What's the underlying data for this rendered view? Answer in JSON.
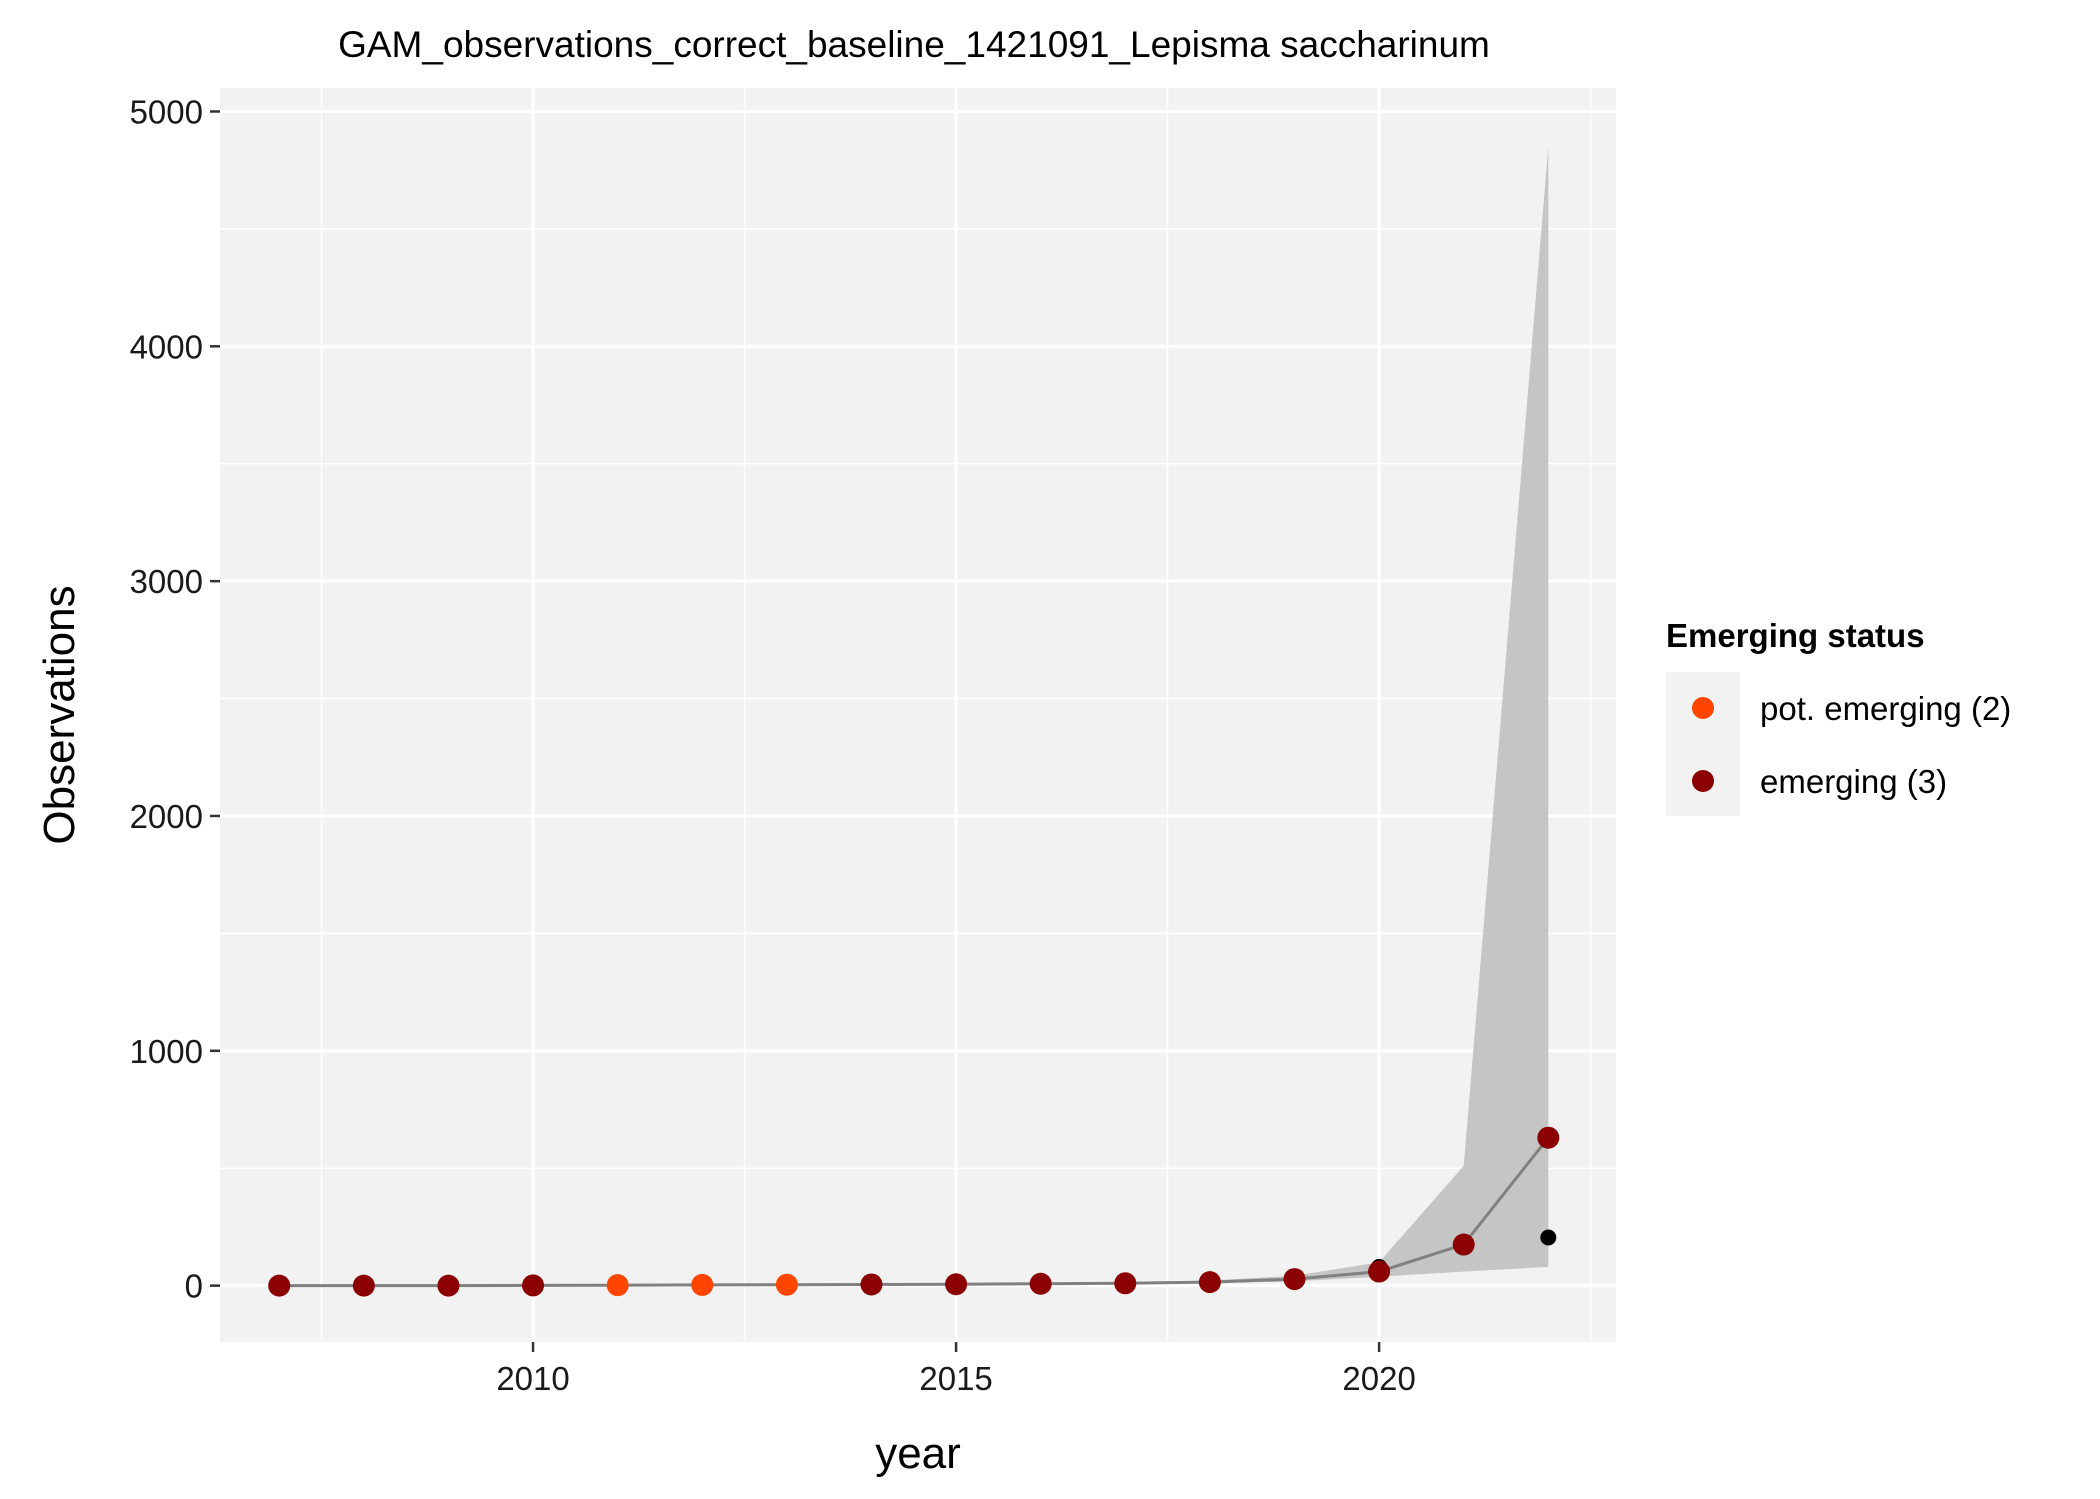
{
  "chart_data": {
    "type": "scatter",
    "title": "GAM_observations_correct_baseline_1421091_Lepisma saccharinum",
    "xlabel": "year",
    "ylabel": "Observations",
    "xlim": [
      2006.3,
      2022.8
    ],
    "ylim": [
      -240,
      5100
    ],
    "x_ticks": [
      2010,
      2015,
      2020
    ],
    "x_tick_labels": [
      "2010",
      "2015",
      "2020"
    ],
    "y_ticks": [
      0,
      1000,
      2000,
      3000,
      4000,
      5000
    ],
    "y_tick_labels": [
      "0",
      "1000",
      "2000",
      "3000",
      "4000",
      "5000"
    ],
    "grid": true,
    "panel_background": "#f2f2f2",
    "grid_color": "#ffffff",
    "gam_fit": {
      "color": "#808080",
      "ribbon_color": "#bdbdbd",
      "x": [
        2007,
        2008,
        2009,
        2010,
        2011,
        2012,
        2013,
        2014,
        2015,
        2016,
        2017,
        2018,
        2019,
        2020,
        2021,
        2022
      ],
      "fit": [
        0,
        0,
        0,
        1,
        2,
        3,
        4,
        5,
        6,
        8,
        10,
        15,
        28,
        60,
        175,
        630
      ],
      "lower": [
        0,
        0,
        0,
        0,
        0,
        0,
        1,
        2,
        3,
        4,
        6,
        10,
        18,
        38,
        60,
        80
      ],
      "upper": [
        2,
        2,
        2,
        3,
        4,
        5,
        7,
        8,
        10,
        12,
        15,
        22,
        42,
        100,
        510,
        4850
      ]
    },
    "observed": {
      "color": "#000000",
      "x": [
        2007,
        2008,
        2009,
        2010,
        2011,
        2012,
        2013,
        2014,
        2015,
        2016,
        2017,
        2018,
        2019,
        2020,
        2021,
        2022
      ],
      "y": [
        0,
        0,
        0,
        0,
        1,
        1,
        3,
        5,
        6,
        7,
        9,
        15,
        30,
        80,
        180,
        205
      ]
    },
    "series": [
      {
        "name": "pot. emerging (2)",
        "color": "#ff4500",
        "x": [
          2011,
          2012,
          2013
        ],
        "y": [
          2,
          3,
          4
        ]
      },
      {
        "name": "emerging (3)",
        "color": "#8b0000",
        "x": [
          2007,
          2008,
          2009,
          2010,
          2014,
          2015,
          2016,
          2017,
          2018,
          2019,
          2020,
          2021,
          2022
        ],
        "y": [
          0,
          0,
          0,
          1,
          5,
          6,
          8,
          10,
          15,
          28,
          60,
          175,
          630
        ]
      }
    ],
    "legend": {
      "title": "Emerging status",
      "placement": "right"
    }
  }
}
